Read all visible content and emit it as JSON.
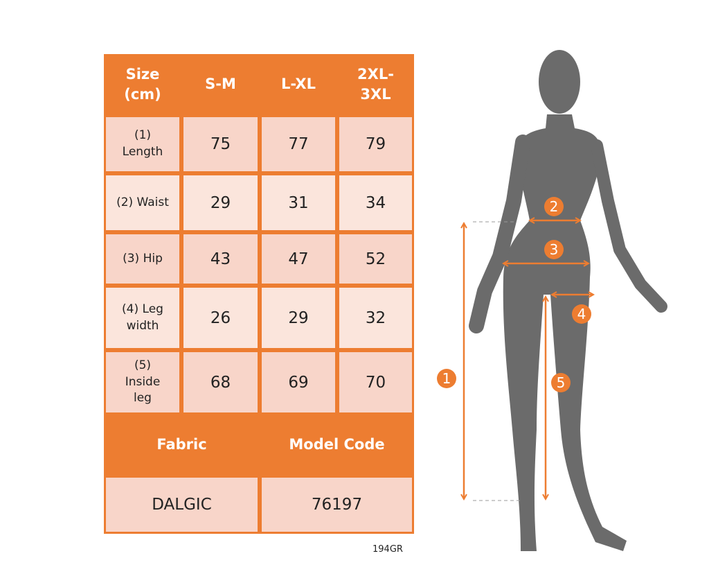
{
  "table": {
    "header": [
      "Size (cm)",
      "S-M",
      "L-XL",
      "2XL-3XL"
    ],
    "header_lines": [
      [
        "Size",
        "(cm)"
      ],
      [
        "S-M"
      ],
      [
        "L-XL"
      ],
      [
        "2XL-",
        "3XL"
      ]
    ],
    "rows": [
      {
        "label_lines": [
          "(1)",
          "Length"
        ],
        "values": [
          "75",
          "77",
          "79"
        ]
      },
      {
        "label_lines": [
          "(2) Waist"
        ],
        "values": [
          "29",
          "31",
          "34"
        ]
      },
      {
        "label_lines": [
          "(3) Hip"
        ],
        "values": [
          "43",
          "47",
          "52"
        ]
      },
      {
        "label_lines": [
          "(4) Leg",
          "width"
        ],
        "values": [
          "26",
          "29",
          "32"
        ]
      },
      {
        "label_lines": [
          "(5)",
          "Inside",
          "leg"
        ],
        "values": [
          "68",
          "69",
          "70"
        ]
      }
    ],
    "fabric_label": "Fabric",
    "model_code_label": "Model Code",
    "fabric_value": "DALGIC",
    "model_code_value": "76197"
  },
  "product_code": "194GR",
  "figure": {
    "markers": [
      "1",
      "2",
      "3",
      "4",
      "5"
    ]
  },
  "colors": {
    "accent": "#ED7D31",
    "cell_dark": "#F8D5C9",
    "cell_light": "#FBE5DC",
    "silhouette": "#6B6B6B"
  }
}
